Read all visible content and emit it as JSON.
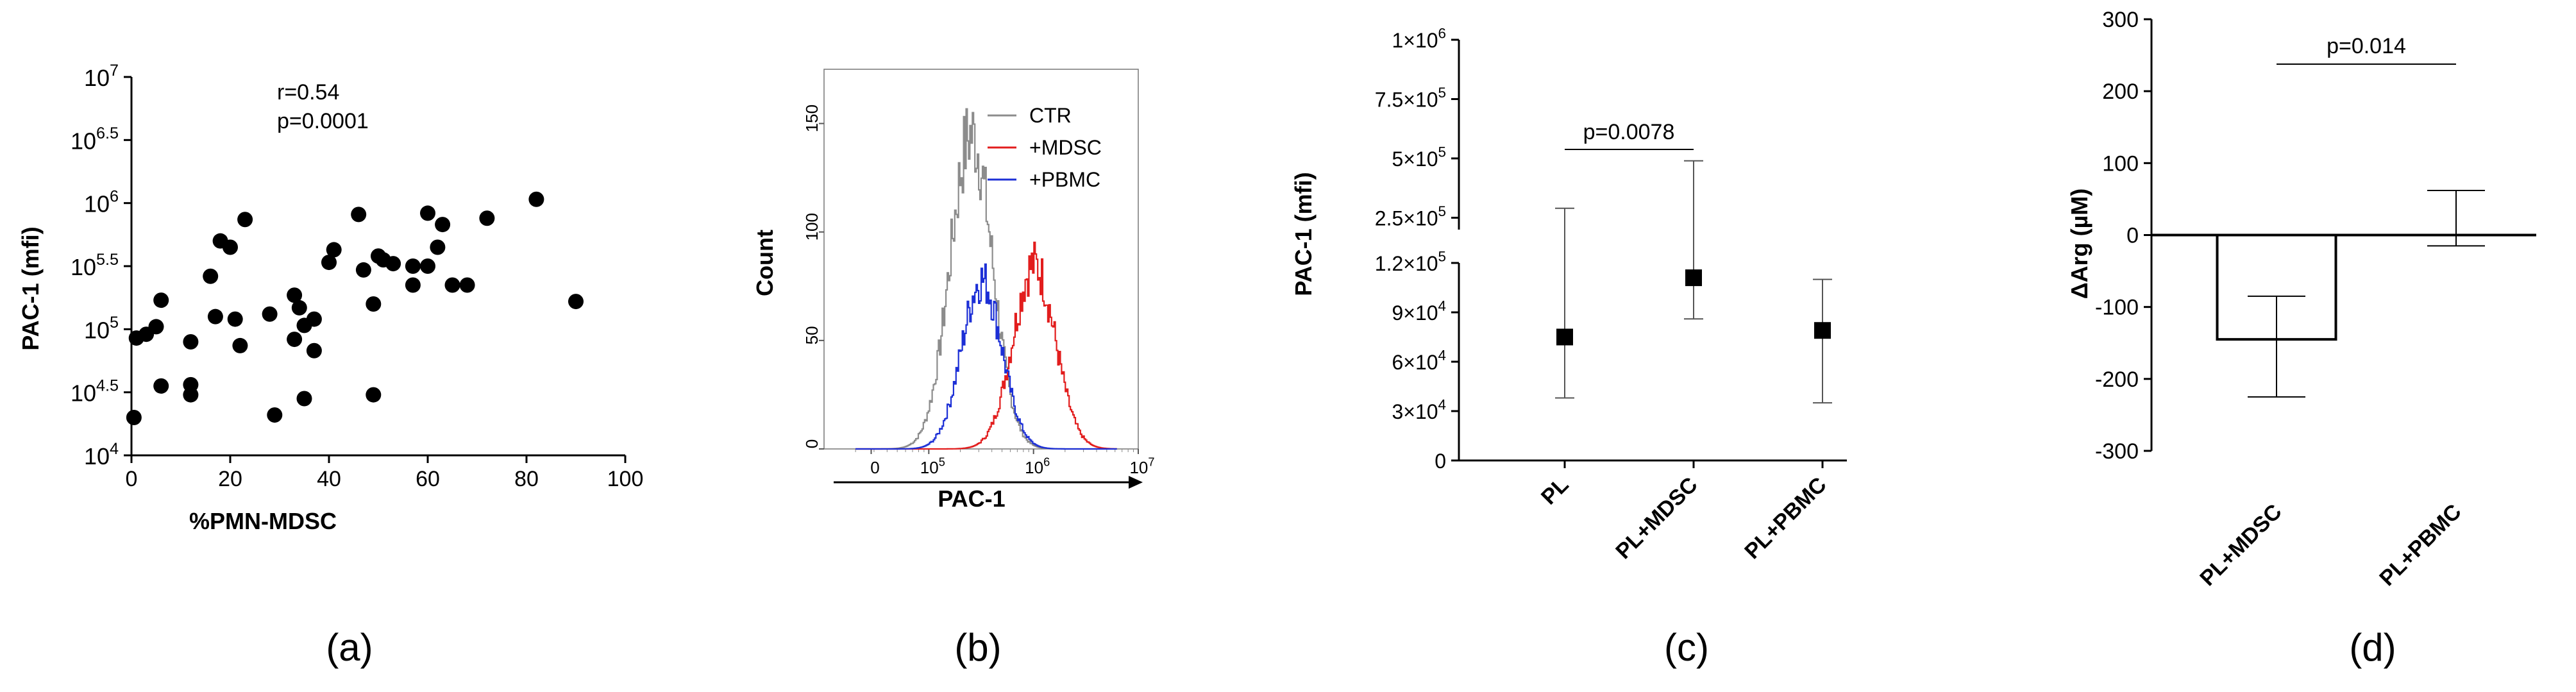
{
  "panels": {
    "a": {
      "label": "(a)",
      "annotation_r": "r=0.54",
      "annotation_p": "p=0.0001"
    },
    "b": {
      "label": "(b)"
    },
    "c": {
      "label": "(c)",
      "p_label": "p=0.0078"
    },
    "d": {
      "label": "(d)",
      "p_label": "p=0.014"
    }
  },
  "chart_data": [
    {
      "type": "scatter",
      "xlabel": "%PMN-MDSC",
      "ylabel": "PAC-1 (mfi)",
      "xlim": [
        0,
        100
      ],
      "ylim_log10": [
        4,
        7
      ],
      "y_scale": "log10",
      "x_ticks": [
        "0",
        "20",
        "40",
        "60",
        "80",
        "100"
      ],
      "y_tick_exponents": [
        "4",
        "4.5",
        "5",
        "5.5",
        "6",
        "6.5",
        "7"
      ],
      "y_tick_base": "10",
      "points": [
        [
          0.5,
          4.3
        ],
        [
          1,
          4.93
        ],
        [
          3,
          4.96
        ],
        [
          5,
          5.02
        ],
        [
          6,
          4.55
        ],
        [
          6,
          5.23
        ],
        [
          12,
          4.48
        ],
        [
          12,
          4.56
        ],
        [
          12,
          4.9
        ],
        [
          16,
          5.42
        ],
        [
          17,
          5.1
        ],
        [
          18,
          5.7
        ],
        [
          20,
          5.65
        ],
        [
          21,
          5.08
        ],
        [
          22,
          4.87
        ],
        [
          23,
          5.87
        ],
        [
          28,
          5.12
        ],
        [
          29,
          4.32
        ],
        [
          33,
          5.27
        ],
        [
          33,
          4.92
        ],
        [
          34,
          5.17
        ],
        [
          35,
          5.03
        ],
        [
          35,
          4.45
        ],
        [
          37,
          5.08
        ],
        [
          37,
          4.83
        ],
        [
          40,
          5.53
        ],
        [
          41,
          5.63
        ],
        [
          46,
          5.91
        ],
        [
          47,
          5.47
        ],
        [
          49,
          5.2
        ],
        [
          49,
          4.48
        ],
        [
          50,
          5.58
        ],
        [
          51,
          5.55
        ],
        [
          53,
          5.52
        ],
        [
          57,
          5.5
        ],
        [
          57,
          5.35
        ],
        [
          60,
          5.92
        ],
        [
          60,
          5.5
        ],
        [
          62,
          5.65
        ],
        [
          63,
          5.83
        ],
        [
          65,
          5.35
        ],
        [
          68,
          5.35
        ],
        [
          72,
          5.88
        ],
        [
          82,
          6.03
        ],
        [
          90,
          5.22
        ]
      ],
      "annotations": [
        "r=0.54",
        "p=0.0001"
      ]
    },
    {
      "type": "line",
      "subtype": "histogram-overlay",
      "xlabel": "PAC-1",
      "ylabel": "Count",
      "x_scale": "log10",
      "x_ticks": [
        {
          "text": "0",
          "exp": ""
        },
        {
          "text": "10",
          "exp": "5"
        },
        {
          "text": "10",
          "exp": "6"
        },
        {
          "text": "10",
          "exp": "7"
        }
      ],
      "y_ticks": [
        "0",
        "50",
        "100",
        "150"
      ],
      "ylim": [
        0,
        175
      ],
      "series": [
        {
          "name": "CTR",
          "color": "#8c8c8c",
          "center": 5.4,
          "sigma": 0.2,
          "peak": 145
        },
        {
          "name": "+MDSC",
          "color": "#e21d1d",
          "center": 6.0,
          "sigma": 0.2,
          "peak": 85
        },
        {
          "name": "+PBMC",
          "color": "#1c2fd6",
          "center": 5.5,
          "sigma": 0.19,
          "peak": 78
        }
      ]
    },
    {
      "type": "scatter",
      "subtype": "mean-error",
      "ylabel": "PAC-1 (mfi)",
      "categories": [
        "PL",
        "PL+MDSC",
        "PL+PBMC"
      ],
      "y_axis_break": true,
      "lower_ticks": [
        "0",
        "3×10⁴",
        "6×10⁴",
        "9×10⁴",
        "1.2×10⁵"
      ],
      "upper_ticks": [
        "2.5×10⁵",
        "5×10⁵",
        "7.5×10⁵",
        "1×10⁶"
      ],
      "lower_range": [
        0,
        120000
      ],
      "upper_range": [
        200000,
        1000000
      ],
      "points": [
        {
          "category": "PL",
          "mean": 75000,
          "low": 38000,
          "high": 290000
        },
        {
          "category": "PL+MDSC",
          "mean": 111000,
          "low": 86000,
          "high": 490000
        },
        {
          "category": "PL+PBMC",
          "mean": 79000,
          "low": 35000,
          "high": 110000
        }
      ],
      "annotation": "p=0.0078"
    },
    {
      "type": "bar",
      "ylabel": "ΔArg (µM)",
      "categories": [
        "PL+MDSC",
        "PL+PBMC"
      ],
      "values": [
        -145,
        22
      ],
      "errors": [
        {
          "low": -225,
          "high": -85
        },
        {
          "low": -15,
          "high": 62
        }
      ],
      "ylim": [
        -300,
        300
      ],
      "y_ticks": [
        "300",
        "200",
        "100",
        "0",
        "-100",
        "-200",
        "-300"
      ],
      "annotation": "p=0.014"
    }
  ]
}
